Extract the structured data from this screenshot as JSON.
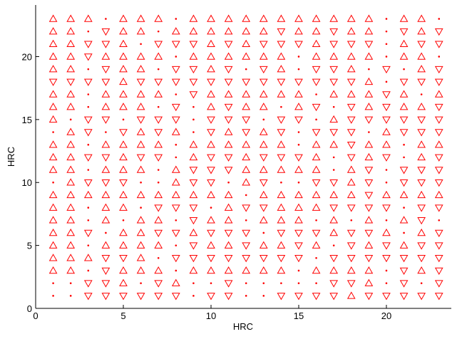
{
  "chart_data": {
    "type": "marker-grid",
    "xlabel": "HRC",
    "ylabel": "HRC",
    "color": "#ff0000",
    "x": [
      1,
      2,
      3,
      4,
      5,
      6,
      7,
      8,
      9,
      10,
      11,
      12,
      13,
      14,
      15,
      16,
      17,
      18,
      19,
      20,
      21,
      22,
      23
    ],
    "y": [
      1,
      2,
      3,
      4,
      5,
      6,
      7,
      8,
      9,
      10,
      11,
      12,
      13,
      14,
      15,
      16,
      17,
      18,
      19,
      20,
      21,
      22,
      23
    ],
    "markers": {
      "u": "triangle-up",
      "d": "triangle-down",
      ".": "dot"
    },
    "rows": [
      "..dddddd.dd..dddduddddd",
      "..ddu.du..d.....ddu.d.d",
      "uu.duuu.uuuuuu.uuuu.dud",
      "uuuddu.dddddddd.ddddddd",
      "uu.uuuu.duuduudu.dududd",
      "uud.uudduddd.ddduddu.ud",
      "uu.u.uu.duu.uuu.u.u.ud.",
      "uu.uu.ddd.udduuudddd.dd",
      "uuuuuuuuuuu.uuuuuuduuuu",
      ".uddd..udd.ud..ddud.ddd",
      "uu.uuu.uddduuuuu.ud.ddd",
      "uuddudd.uddudddu.dud.ud",
      "uu.uuuu.uuuuuu.uuduu.uu",
      ".ud.dudu.dudud.ddd.uddd",
      "u.dd.ddd.ddd.dd.udddddd",
      "uu.uuu.d.uduu.ud.duduud",
      "uu.uuuu.duuuuuu.uuudu.u",
      "ddddudddddddddddddu.ddd",
      "uu.duu.ddud.du.ddu.d.ud",
      "uuduuuu.uuuuuu.uuuu.uu.",
      "uuddu.dddududdduddd.udd",
      "uu.duu.uuuuuuduuduu.dud",
      "uuu.uuu.uuuuuuuuuuu.uu."
    ],
    "xlim": [
      0,
      23.7
    ],
    "ylim": [
      0,
      24.1
    ],
    "xticks": [
      0,
      5,
      10,
      15,
      20
    ],
    "yticks": [
      0,
      5,
      10,
      15,
      20
    ]
  }
}
